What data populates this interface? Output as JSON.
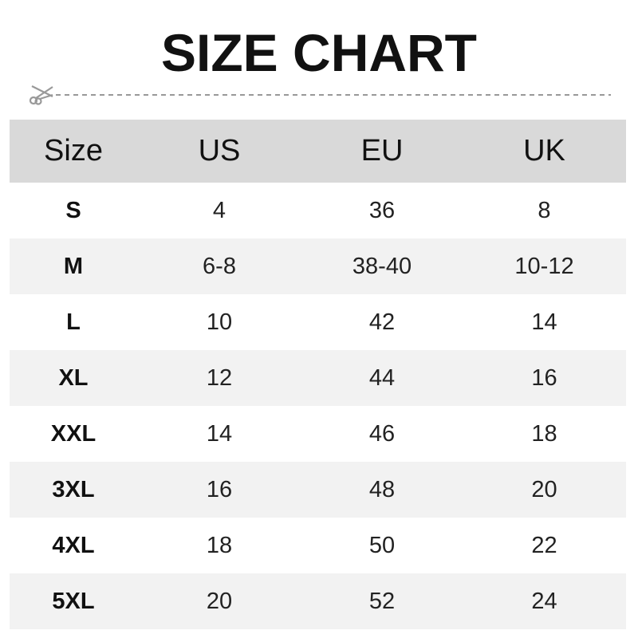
{
  "title": "SIZE CHART",
  "icons": {
    "cut": "scissors-icon"
  },
  "colors": {
    "header_bg": "#d9d9d9",
    "stripe_bg": "#f2f2f2",
    "text": "#222222",
    "cutline": "#999999"
  },
  "chart_data": {
    "type": "table",
    "title": "SIZE CHART",
    "columns": [
      "Size",
      "US",
      "EU",
      "UK"
    ],
    "rows": [
      [
        "S",
        "4",
        "36",
        "8"
      ],
      [
        "M",
        "6-8",
        "38-40",
        "10-12"
      ],
      [
        "L",
        "10",
        "42",
        "14"
      ],
      [
        "XL",
        "12",
        "44",
        "16"
      ],
      [
        "XXL",
        "14",
        "46",
        "18"
      ],
      [
        "3XL",
        "16",
        "48",
        "20"
      ],
      [
        "4XL",
        "18",
        "50",
        "22"
      ],
      [
        "5XL",
        "20",
        "52",
        "24"
      ]
    ]
  }
}
